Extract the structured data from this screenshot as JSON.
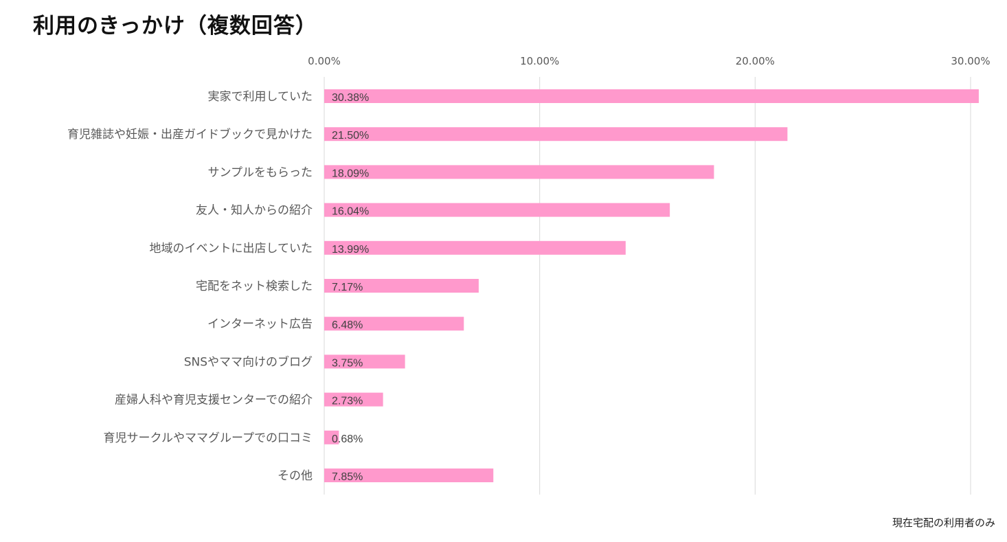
{
  "title": "利用のきっかけ（複数回答）",
  "footnote": "現在宅配の利用者のみ",
  "colors": {
    "bar": "#FF99CC",
    "grid": "#D9D9D9",
    "axis_text": "#595959",
    "label_text": "#404040"
  },
  "chart_data": {
    "type": "bar",
    "orientation": "horizontal",
    "title": "利用のきっかけ（複数回答）",
    "xlim": [
      0,
      30
    ],
    "x_ticks": [
      0,
      10,
      20,
      30
    ],
    "x_tick_labels": [
      "0.00%",
      "10.00%",
      "20.00%",
      "30.00%"
    ],
    "x_axis_position": "top",
    "grid": true,
    "categories": [
      "実家で利用していた",
      "育児雑誌や妊娠・出産ガイドブックで見かけた",
      "サンプルをもらった",
      "友人・知人からの紹介",
      "地域のイベントに出店していた",
      "宅配をネット検索した",
      "インターネット広告",
      "SNSやママ向けのブログ",
      "産婦人科や育児支援センターでの紹介",
      "育児サークルやママグループでの口コミ",
      "その他"
    ],
    "values": [
      30.38,
      21.5,
      18.09,
      16.04,
      13.99,
      7.17,
      6.48,
      3.75,
      2.73,
      0.68,
      7.85
    ],
    "data_labels": [
      "30.38%",
      "21.50%",
      "18.09%",
      "16.04%",
      "13.99%",
      "7.17%",
      "6.48%",
      "3.75%",
      "2.73%",
      "0.68%",
      "7.85%"
    ]
  }
}
